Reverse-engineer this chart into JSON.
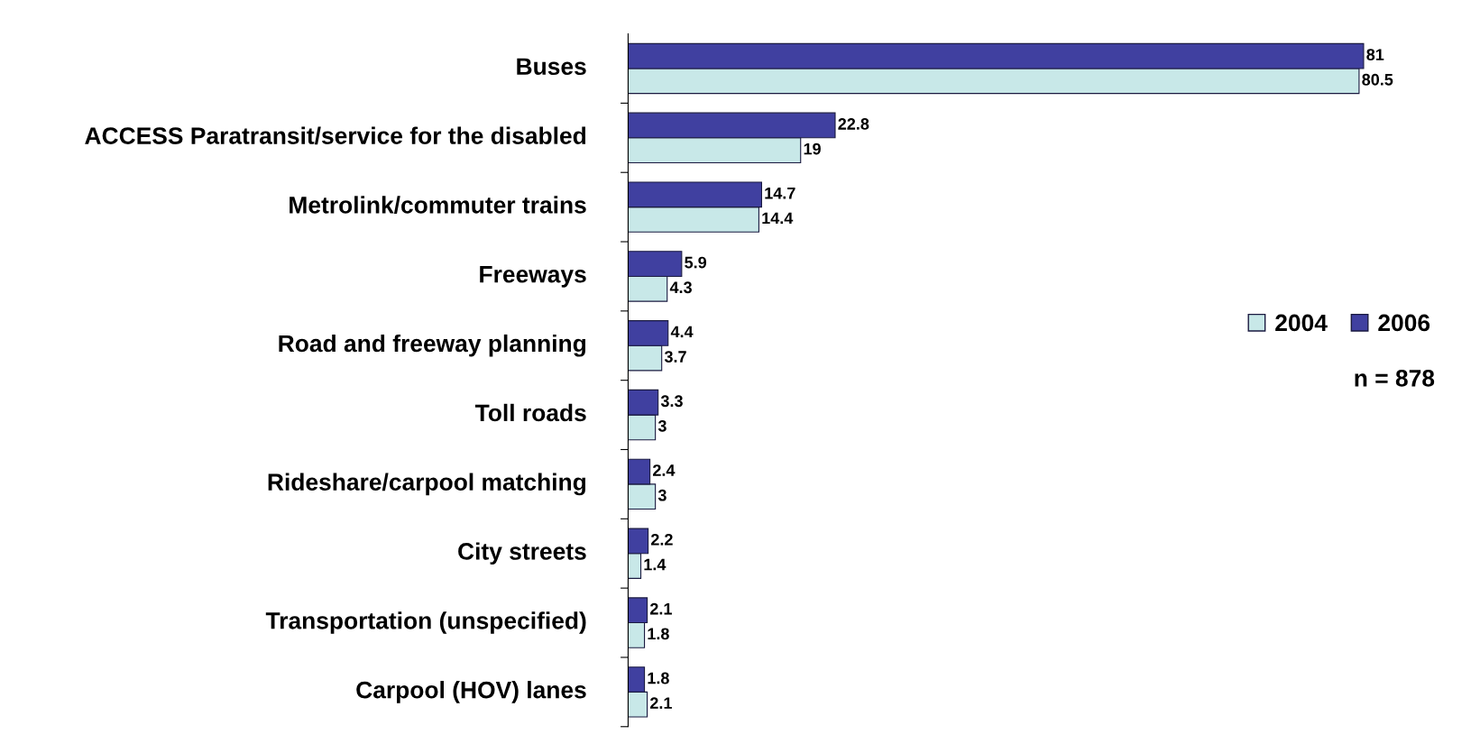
{
  "chart_data": {
    "type": "bar",
    "orientation": "horizontal",
    "categories": [
      "Buses",
      "ACCESS Paratransit/service for the disabled",
      "Metrolink/commuter trains",
      "Freeways",
      "Road and freeway planning",
      "Toll roads",
      "Rideshare/carpool matching",
      "City streets",
      "Transportation (unspecified)",
      "Carpool (HOV) lanes"
    ],
    "series": [
      {
        "name": "2004",
        "color": "#c8e8e8",
        "values": [
          80.5,
          19,
          14.4,
          4.3,
          3.7,
          3,
          3,
          1.4,
          1.8,
          2.1
        ]
      },
      {
        "name": "2006",
        "color": "#4040a0",
        "values": [
          81,
          22.8,
          14.7,
          5.9,
          4.4,
          3.3,
          2.4,
          2.2,
          2.1,
          1.8
        ]
      }
    ],
    "data_labels": true,
    "legend": "right",
    "grid": false,
    "annotations": [
      "n = 878"
    ]
  }
}
